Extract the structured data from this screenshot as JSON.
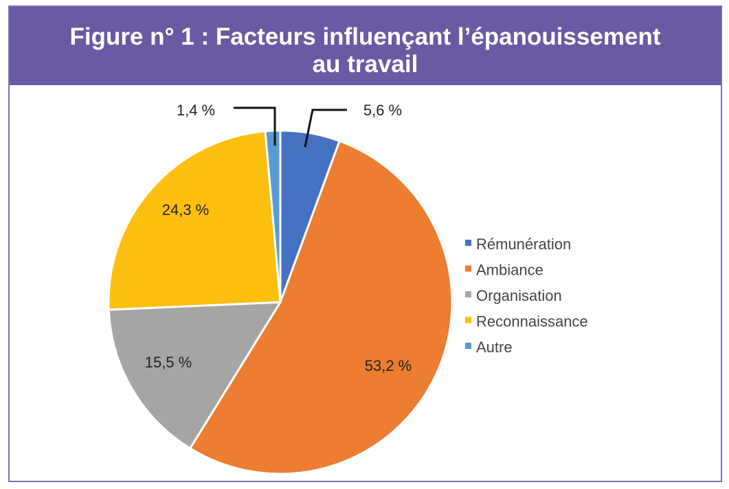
{
  "chart_data": {
    "type": "pie",
    "title_line1": "Figure n° 1 : Facteurs influençant l’épanouissement",
    "title_line2": "au travail",
    "legend_position": "right",
    "slices": [
      {
        "name": "Rémunération",
        "value": 5.6,
        "label": "5,6 %",
        "color": "#4672c4"
      },
      {
        "name": "Ambiance",
        "value": 53.2,
        "label": "53,2 %",
        "color": "#ed7d31"
      },
      {
        "name": "Organisation",
        "value": 15.5,
        "label": "15,5 %",
        "color": "#a5a5a5"
      },
      {
        "name": "Reconnaissance",
        "value": 24.3,
        "label": "24,3 %",
        "color": "#fdbf10"
      },
      {
        "name": "Autre",
        "value": 1.4,
        "label": "1,4 %",
        "color": "#5b9bd5"
      }
    ]
  }
}
